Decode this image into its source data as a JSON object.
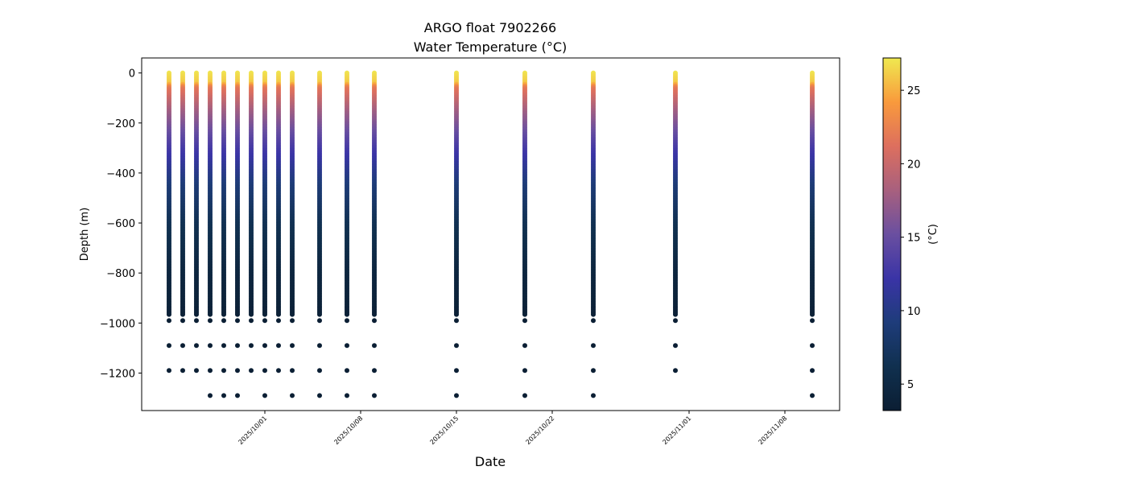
{
  "chart_data": {
    "type": "scatter",
    "title": "ARGO float 7902266",
    "subtitle": "Water Temperature (°C)",
    "xlabel": "Date",
    "ylabel": "Depth (m)",
    "colorbar_label": "(°C)",
    "ylim": [
      -1350,
      60
    ],
    "xlim": [
      "2025-09-22",
      "2025-11-12"
    ],
    "y_ticks": [
      0,
      -200,
      -400,
      -600,
      -800,
      -1000,
      -1200
    ],
    "y_tick_labels": [
      "0",
      "−200",
      "−400",
      "−600",
      "−800",
      "−1000",
      "−1200"
    ],
    "x_ticks": [
      "2025-10-01",
      "2025-10-08",
      "2025-10-15",
      "2025-10-22",
      "2025-11-01",
      "2025-11-08"
    ],
    "x_tick_labels": [
      "2025/10/01",
      "2025/10/08",
      "2025/10/15",
      "2025/10/22",
      "2025/11/01",
      "2025/11/08"
    ],
    "colorbar_range": [
      3.2,
      27.2
    ],
    "colorbar_ticks": [
      5,
      10,
      15,
      20,
      25
    ],
    "colormap": [
      "#0b1e33",
      "#10304f",
      "#1e3c7a",
      "#3a34a6",
      "#6a4fa0",
      "#a8607e",
      "#dd6f5e",
      "#f99a3c",
      "#efe950"
    ],
    "profiles": [
      {
        "date": "2025-09-24",
        "max_depth": -970,
        "deep_points": [
          -990,
          -1090,
          -1190
        ]
      },
      {
        "date": "2025-09-25",
        "max_depth": -970,
        "deep_points": [
          -990,
          -1090,
          -1190
        ]
      },
      {
        "date": "2025-09-26",
        "max_depth": -970,
        "deep_points": [
          -990,
          -1090,
          -1190
        ]
      },
      {
        "date": "2025-09-27",
        "max_depth": -970,
        "deep_points": [
          -990,
          -1090,
          -1190,
          -1290
        ]
      },
      {
        "date": "2025-09-28",
        "max_depth": -970,
        "deep_points": [
          -990,
          -1090,
          -1190,
          -1290
        ]
      },
      {
        "date": "2025-09-29",
        "max_depth": -970,
        "deep_points": [
          -990,
          -1090,
          -1190,
          -1290
        ]
      },
      {
        "date": "2025-09-30",
        "max_depth": -970,
        "deep_points": [
          -990,
          -1090,
          -1190
        ]
      },
      {
        "date": "2025-10-01",
        "max_depth": -970,
        "deep_points": [
          -990,
          -1090,
          -1190,
          -1290
        ]
      },
      {
        "date": "2025-10-02",
        "max_depth": -970,
        "deep_points": [
          -990,
          -1090,
          -1190
        ]
      },
      {
        "date": "2025-10-03",
        "max_depth": -970,
        "deep_points": [
          -990,
          -1090,
          -1190,
          -1290
        ]
      },
      {
        "date": "2025-10-05",
        "max_depth": -970,
        "deep_points": [
          -990,
          -1090,
          -1190,
          -1290
        ]
      },
      {
        "date": "2025-10-07",
        "max_depth": -970,
        "deep_points": [
          -990,
          -1090,
          -1190,
          -1290
        ]
      },
      {
        "date": "2025-10-09",
        "max_depth": -970,
        "deep_points": [
          -990,
          -1090,
          -1190,
          -1290
        ]
      },
      {
        "date": "2025-10-15",
        "max_depth": -970,
        "deep_points": [
          -990,
          -1090,
          -1190,
          -1290
        ]
      },
      {
        "date": "2025-10-20",
        "max_depth": -970,
        "deep_points": [
          -990,
          -1090,
          -1190,
          -1290
        ]
      },
      {
        "date": "2025-10-25",
        "max_depth": -970,
        "deep_points": [
          -990,
          -1090,
          -1190,
          -1290
        ]
      },
      {
        "date": "2025-10-31",
        "max_depth": -970,
        "deep_points": [
          -990,
          -1090,
          -1190
        ]
      },
      {
        "date": "2025-11-10",
        "max_depth": -970,
        "deep_points": [
          -990,
          -1090,
          -1190,
          -1290
        ]
      }
    ],
    "temperature_profile": [
      {
        "depth": 0,
        "temp": 27
      },
      {
        "depth": -40,
        "temp": 26
      },
      {
        "depth": -60,
        "temp": 22
      },
      {
        "depth": -150,
        "temp": 18
      },
      {
        "depth": -300,
        "temp": 13
      },
      {
        "depth": -450,
        "temp": 9
      },
      {
        "depth": -600,
        "temp": 6.5
      },
      {
        "depth": -800,
        "temp": 4.5
      },
      {
        "depth": -970,
        "temp": 3.6
      }
    ],
    "deep_temp": 3.3,
    "grid": false
  }
}
